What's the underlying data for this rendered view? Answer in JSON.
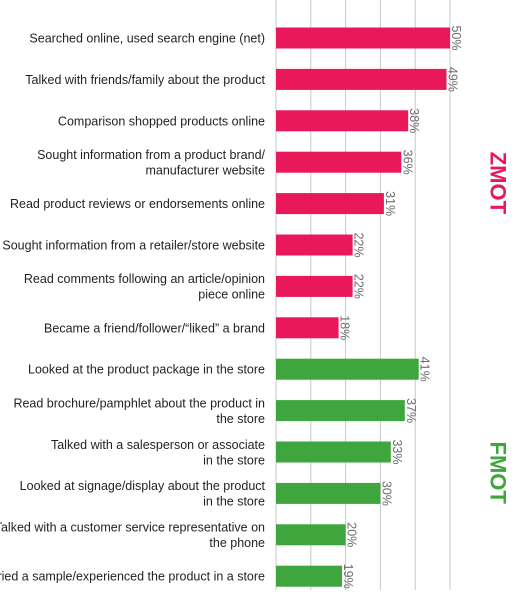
{
  "chart_data": {
    "type": "bar",
    "orientation": "horizontal",
    "grid": true,
    "xlim": [
      0,
      55
    ],
    "groups": [
      {
        "name": "ZMOT",
        "color": "#e8185a",
        "items": [
          {
            "label_lines": [
              "Searched online, used search engine (net)"
            ],
            "value": 50,
            "value_label": "50%"
          },
          {
            "label_lines": [
              "Talked with friends/family about the product"
            ],
            "value": 49,
            "value_label": "49%"
          },
          {
            "label_lines": [
              "Comparison shopped products online"
            ],
            "value": 38,
            "value_label": "38%"
          },
          {
            "label_lines": [
              "Sought information from a product brand/",
              "manufacturer website"
            ],
            "value": 36,
            "value_label": "36%"
          },
          {
            "label_lines": [
              "Read product reviews or endorsements online"
            ],
            "value": 31,
            "value_label": "31%"
          },
          {
            "label_lines": [
              "Sought information from a retailer/store website"
            ],
            "value": 22,
            "value_label": "22%"
          },
          {
            "label_lines": [
              "Read comments following an article/opinion",
              "piece online"
            ],
            "value": 22,
            "value_label": "22%"
          },
          {
            "label_lines": [
              "Became a friend/follower/“liked” a brand"
            ],
            "value": 18,
            "value_label": "18%"
          }
        ]
      },
      {
        "name": "FMOT",
        "color": "#3ea63c",
        "items": [
          {
            "label_lines": [
              "Looked at the product package in the store"
            ],
            "value": 41,
            "value_label": "41%"
          },
          {
            "label_lines": [
              "Read brochure/pamphlet about the product in",
              "the store"
            ],
            "value": 37,
            "value_label": "37%"
          },
          {
            "label_lines": [
              "Talked with a salesperson or associate",
              "in the store"
            ],
            "value": 33,
            "value_label": "33%"
          },
          {
            "label_lines": [
              "Looked at signage/display about the product",
              "in the store"
            ],
            "value": 30,
            "value_label": "30%"
          },
          {
            "label_lines": [
              "Talked with a customer service representative on",
              "the phone"
            ],
            "value": 20,
            "value_label": "20%"
          },
          {
            "label_lines": [
              "Tried a sample/experienced the product in a store"
            ],
            "value": 19,
            "value_label": "19%"
          }
        ]
      }
    ]
  }
}
